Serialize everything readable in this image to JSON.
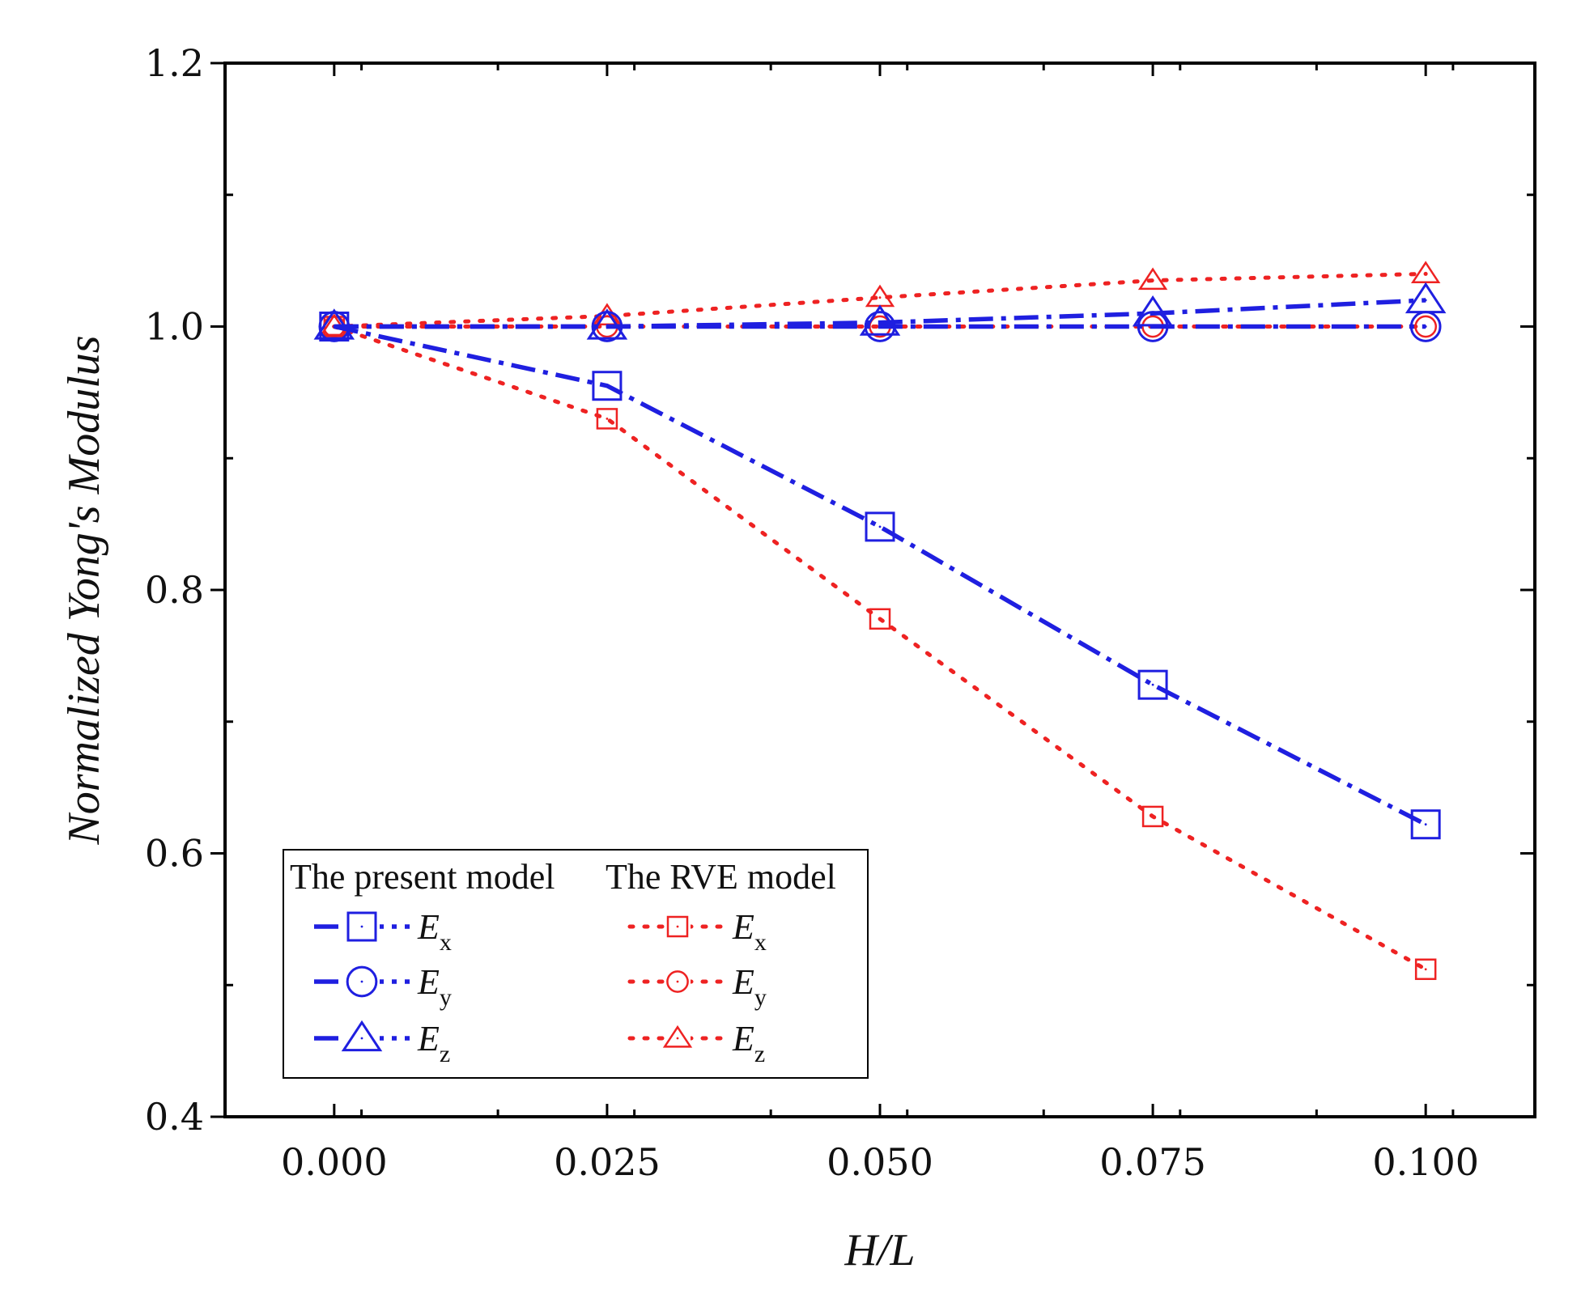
{
  "chart_data": {
    "type": "line",
    "title": "",
    "xlabel": "H/L",
    "ylabel": "Normalized Yong's Modulus",
    "x": [
      0.0,
      0.025,
      0.05,
      0.075,
      0.1
    ],
    "xticks": [
      "0.000",
      "0.025",
      "0.050",
      "0.075",
      "0.100"
    ],
    "xlim": [
      -0.01,
      0.11
    ],
    "ylim": [
      0.4,
      1.2
    ],
    "yticks": [
      "0.4",
      "0.6",
      "0.8",
      "1.0",
      "1.2"
    ],
    "ytick_values": [
      0.4,
      0.6,
      0.8,
      1.0,
      1.2
    ],
    "grid": false,
    "legend_placement": "bottom-left",
    "legend_groups": [
      "The present model",
      "The RVE model"
    ],
    "series": [
      {
        "group": "The present model",
        "symbol": "E",
        "subscript": "x",
        "marker": "square",
        "color": "#1f1fe0",
        "dash": "dashdot",
        "values": [
          1.0,
          0.955,
          0.848,
          0.728,
          0.622
        ]
      },
      {
        "group": "The present model",
        "symbol": "E",
        "subscript": "y",
        "marker": "circle",
        "color": "#1f1fe0",
        "dash": "dashdot",
        "values": [
          1.0,
          1.0,
          1.0,
          1.0,
          1.0
        ]
      },
      {
        "group": "The present model",
        "symbol": "E",
        "subscript": "z",
        "marker": "triangle",
        "color": "#1f1fe0",
        "dash": "dashdot",
        "values": [
          1.0,
          1.0,
          1.003,
          1.01,
          1.02
        ]
      },
      {
        "group": "The RVE model",
        "symbol": "E",
        "subscript": "x",
        "marker": "square",
        "color": "#ee2222",
        "dash": "dotted",
        "values": [
          1.0,
          0.93,
          0.778,
          0.628,
          0.512
        ]
      },
      {
        "group": "The RVE model",
        "symbol": "E",
        "subscript": "y",
        "marker": "circle",
        "color": "#ee2222",
        "dash": "dotted",
        "values": [
          1.0,
          1.0,
          1.0,
          1.0,
          1.0
        ]
      },
      {
        "group": "The RVE model",
        "symbol": "E",
        "subscript": "z",
        "marker": "triangle",
        "color": "#ee2222",
        "dash": "dotted",
        "values": [
          1.0,
          1.008,
          1.022,
          1.035,
          1.04
        ]
      }
    ]
  }
}
